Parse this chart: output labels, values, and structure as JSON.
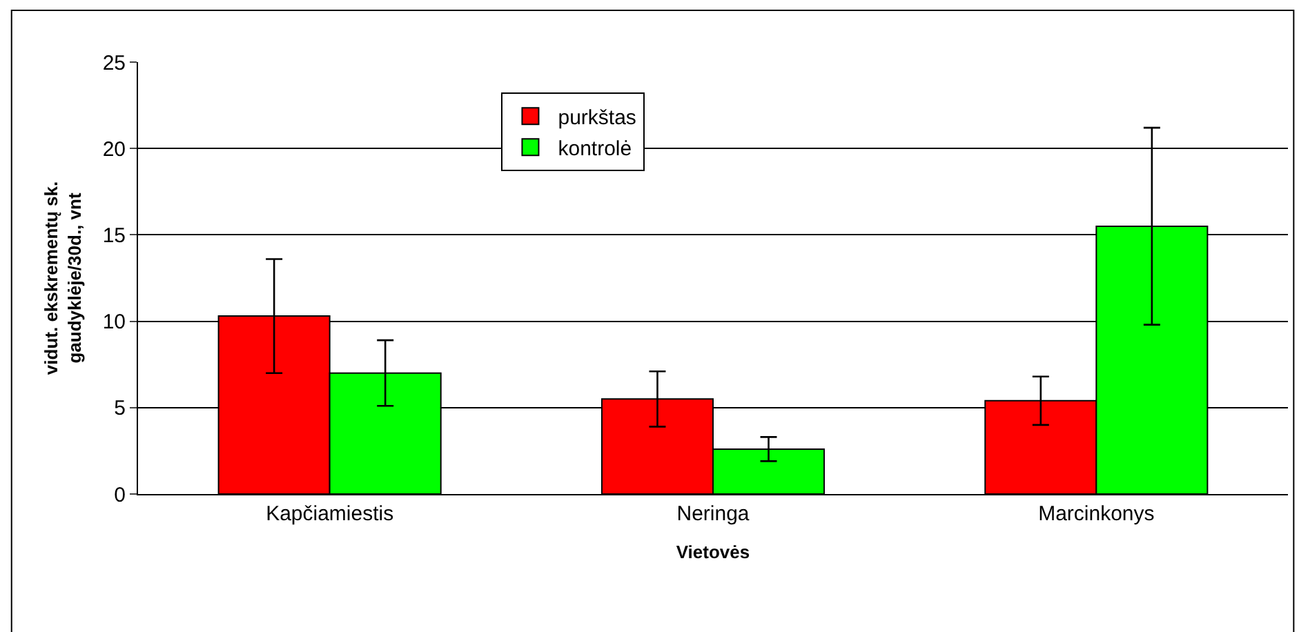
{
  "chart_data": {
    "type": "bar",
    "xlabel": "Vietovės",
    "ylabel": "vidut. ekskrementų sk.\ngaudyklėje/30d., vnt",
    "categories": [
      "Kapčiamiestis",
      "Neringa",
      "Marcinkonys"
    ],
    "series": [
      {
        "name": "purkštas",
        "color": "#ff0000",
        "values": [
          10.3,
          5.5,
          5.4
        ],
        "errors": [
          3.3,
          1.6,
          1.4
        ]
      },
      {
        "name": "kontrolė",
        "color": "#00ff00",
        "values": [
          7.0,
          2.6,
          15.5
        ],
        "errors": [
          1.9,
          0.7,
          5.7
        ]
      }
    ],
    "ylim": [
      0,
      25
    ],
    "yticks": [
      0,
      5,
      10,
      15,
      20,
      25
    ],
    "grid": "y",
    "legend": "top"
  }
}
